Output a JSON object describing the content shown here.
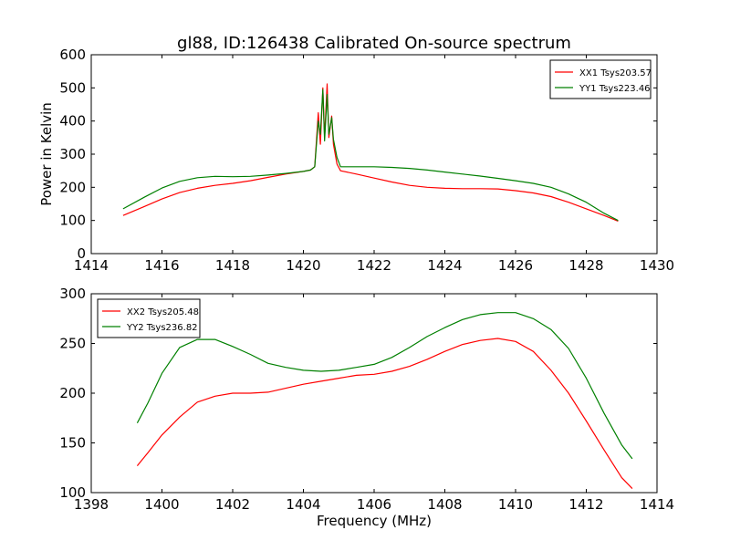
{
  "figure_title": "gl88, ID:126438 Calibrated On-source spectrum",
  "chart_data": [
    {
      "type": "line",
      "title": "gl88, ID:126438 Calibrated On-source spectrum",
      "xlabel": "",
      "ylabel": "Power in Kelvin",
      "xlim": [
        1414,
        1430
      ],
      "ylim": [
        0,
        600
      ],
      "xticks": [
        1414,
        1416,
        1418,
        1420,
        1422,
        1424,
        1426,
        1428,
        1430
      ],
      "yticks": [
        0,
        100,
        200,
        300,
        400,
        500,
        600
      ],
      "grid": false,
      "legend_position": "top-right",
      "series": [
        {
          "name": "XX1 Tsys203.57",
          "color": "#ff0000",
          "points": [
            [
              1414.9,
              115
            ],
            [
              1415.5,
              142
            ],
            [
              1416.0,
              165
            ],
            [
              1416.5,
              184
            ],
            [
              1417.0,
              197
            ],
            [
              1417.5,
              206
            ],
            [
              1418.0,
              212
            ],
            [
              1418.5,
              220
            ],
            [
              1419.0,
              230
            ],
            [
              1419.5,
              240
            ],
            [
              1420.0,
              248
            ],
            [
              1420.2,
              252
            ],
            [
              1420.32,
              262
            ],
            [
              1420.42,
              425
            ],
            [
              1420.48,
              330
            ],
            [
              1420.55,
              500
            ],
            [
              1420.6,
              350
            ],
            [
              1420.67,
              512
            ],
            [
              1420.72,
              350
            ],
            [
              1420.8,
              415
            ],
            [
              1420.85,
              330
            ],
            [
              1420.95,
              270
            ],
            [
              1421.05,
              250
            ],
            [
              1421.5,
              240
            ],
            [
              1422.0,
              228
            ],
            [
              1422.5,
              216
            ],
            [
              1423.0,
              206
            ],
            [
              1423.5,
              200
            ],
            [
              1424.0,
              197
            ],
            [
              1424.5,
              196
            ],
            [
              1425.0,
              196
            ],
            [
              1425.5,
              195
            ],
            [
              1426.0,
              190
            ],
            [
              1426.5,
              183
            ],
            [
              1427.0,
              172
            ],
            [
              1427.5,
              155
            ],
            [
              1428.0,
              135
            ],
            [
              1428.5,
              115
            ],
            [
              1428.9,
              98
            ]
          ]
        },
        {
          "name": "YY1 Tsys223.46",
          "color": "#008000",
          "points": [
            [
              1414.9,
              135
            ],
            [
              1415.5,
              170
            ],
            [
              1416.0,
              198
            ],
            [
              1416.5,
              218
            ],
            [
              1417.0,
              229
            ],
            [
              1417.5,
              233
            ],
            [
              1418.0,
              232
            ],
            [
              1418.5,
              233
            ],
            [
              1419.0,
              237
            ],
            [
              1419.5,
              242
            ],
            [
              1420.0,
              248
            ],
            [
              1420.2,
              252
            ],
            [
              1420.32,
              262
            ],
            [
              1420.42,
              400
            ],
            [
              1420.48,
              360
            ],
            [
              1420.55,
              495
            ],
            [
              1420.6,
              340
            ],
            [
              1420.67,
              480
            ],
            [
              1420.72,
              360
            ],
            [
              1420.8,
              410
            ],
            [
              1420.85,
              345
            ],
            [
              1420.95,
              290
            ],
            [
              1421.05,
              262
            ],
            [
              1421.5,
              262
            ],
            [
              1422.0,
              262
            ],
            [
              1422.5,
              260
            ],
            [
              1423.0,
              257
            ],
            [
              1423.5,
              252
            ],
            [
              1424.0,
              246
            ],
            [
              1424.5,
              240
            ],
            [
              1425.0,
              234
            ],
            [
              1425.5,
              227
            ],
            [
              1426.0,
              220
            ],
            [
              1426.5,
              212
            ],
            [
              1427.0,
              200
            ],
            [
              1427.5,
              180
            ],
            [
              1428.0,
              155
            ],
            [
              1428.5,
              122
            ],
            [
              1428.9,
              100
            ]
          ]
        }
      ]
    },
    {
      "type": "line",
      "title": "",
      "xlabel": "Frequency (MHz)",
      "ylabel": "",
      "xlim": [
        1398,
        1414
      ],
      "ylim": [
        100,
        300
      ],
      "xticks": [
        1398,
        1400,
        1402,
        1404,
        1406,
        1408,
        1410,
        1412,
        1414
      ],
      "yticks": [
        100,
        150,
        200,
        250,
        300
      ],
      "grid": false,
      "legend_position": "top-left",
      "series": [
        {
          "name": "XX2 Tsys205.48",
          "color": "#ff0000",
          "points": [
            [
              1399.3,
              127
            ],
            [
              1399.6,
              140
            ],
            [
              1400.0,
              158
            ],
            [
              1400.5,
              176
            ],
            [
              1401.0,
              191
            ],
            [
              1401.5,
              197
            ],
            [
              1402.0,
              200
            ],
            [
              1402.5,
              200
            ],
            [
              1403.0,
              201
            ],
            [
              1403.5,
              205
            ],
            [
              1404.0,
              209
            ],
            [
              1404.5,
              212
            ],
            [
              1405.0,
              215
            ],
            [
              1405.5,
              218
            ],
            [
              1406.0,
              219
            ],
            [
              1406.5,
              222
            ],
            [
              1407.0,
              227
            ],
            [
              1407.5,
              234
            ],
            [
              1408.0,
              242
            ],
            [
              1408.5,
              249
            ],
            [
              1409.0,
              253
            ],
            [
              1409.5,
              255
            ],
            [
              1410.0,
              252
            ],
            [
              1410.5,
              242
            ],
            [
              1411.0,
              223
            ],
            [
              1411.5,
              200
            ],
            [
              1412.0,
              172
            ],
            [
              1412.5,
              143
            ],
            [
              1413.0,
              115
            ],
            [
              1413.3,
              104
            ]
          ]
        },
        {
          "name": "YY2 Tsys236.82",
          "color": "#008000",
          "points": [
            [
              1399.3,
              170
            ],
            [
              1399.6,
              190
            ],
            [
              1400.0,
              220
            ],
            [
              1400.5,
              246
            ],
            [
              1401.0,
              254
            ],
            [
              1401.5,
              254
            ],
            [
              1402.0,
              247
            ],
            [
              1402.5,
              239
            ],
            [
              1403.0,
              230
            ],
            [
              1403.5,
              226
            ],
            [
              1404.0,
              223
            ],
            [
              1404.5,
              222
            ],
            [
              1405.0,
              223
            ],
            [
              1405.5,
              226
            ],
            [
              1406.0,
              229
            ],
            [
              1406.5,
              236
            ],
            [
              1407.0,
              246
            ],
            [
              1407.5,
              257
            ],
            [
              1408.0,
              266
            ],
            [
              1408.5,
              274
            ],
            [
              1409.0,
              279
            ],
            [
              1409.5,
              281
            ],
            [
              1410.0,
              281
            ],
            [
              1410.5,
              275
            ],
            [
              1411.0,
              264
            ],
            [
              1411.5,
              245
            ],
            [
              1412.0,
              215
            ],
            [
              1412.5,
              180
            ],
            [
              1413.0,
              148
            ],
            [
              1413.3,
              134
            ]
          ]
        }
      ]
    }
  ]
}
